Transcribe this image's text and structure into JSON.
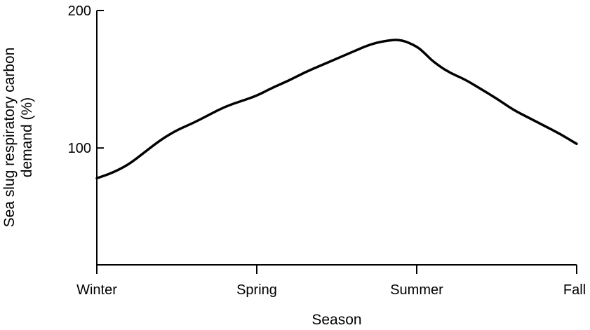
{
  "chart_data": {
    "type": "line",
    "title": "",
    "xlabel": "Season",
    "ylabel_lines": [
      "Sea slug respiratory carbon",
      "demand (%)"
    ],
    "categories": [
      "Winter",
      "Spring",
      "Summer",
      "Fall"
    ],
    "x_range": [
      0,
      3
    ],
    "ylim": [
      15,
      200
    ],
    "y_ticks": [
      100,
      200
    ],
    "grid": false,
    "legend": "none",
    "series": [
      {
        "color": "#000000",
        "x": [
          0,
          0.1,
          0.2,
          0.3,
          0.4,
          0.5,
          0.6,
          0.7,
          0.8,
          0.9,
          1.0,
          1.1,
          1.2,
          1.3,
          1.4,
          1.5,
          1.6,
          1.7,
          1.8,
          1.9,
          2.0,
          2.05,
          2.1,
          2.2,
          2.3,
          2.4,
          2.5,
          2.6,
          2.7,
          2.8,
          2.9,
          3.0
        ],
        "y": [
          78,
          82,
          88,
          97,
          106,
          113,
          118,
          124,
          130,
          134,
          138,
          144,
          149,
          155,
          160,
          165,
          170,
          175,
          178,
          179,
          174,
          169,
          163,
          155,
          150,
          143,
          136,
          128,
          122,
          116,
          110,
          103
        ]
      }
    ]
  }
}
